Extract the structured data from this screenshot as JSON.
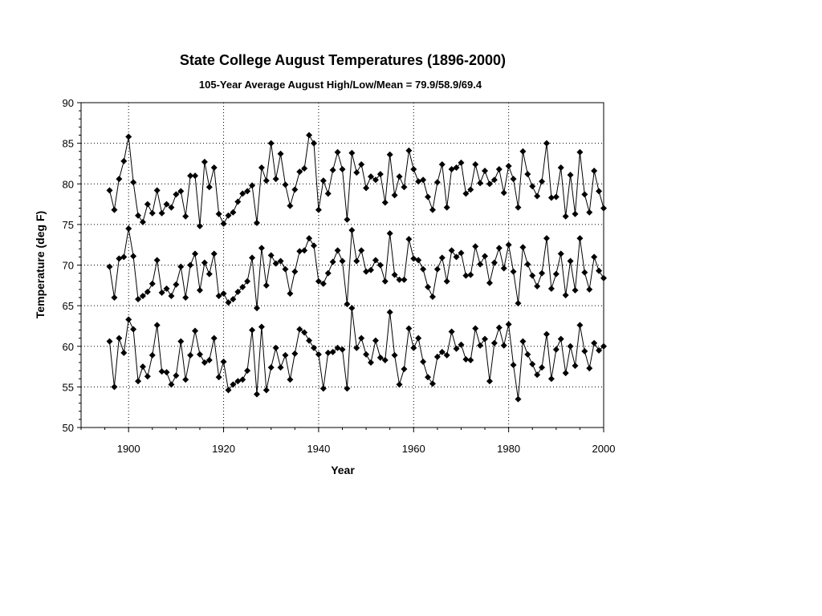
{
  "chart_data": {
    "type": "line",
    "title": "State College August Temperatures  (1896-2000)",
    "subtitle": "105-Year Average August High/Low/Mean = 79.9/58.9/69.4",
    "xlabel": "Year",
    "ylabel": "Temperature (deg F)",
    "xlim": [
      1890,
      2000
    ],
    "ylim": [
      50,
      90
    ],
    "x_ticks": [
      1900,
      1920,
      1940,
      1960,
      1980,
      2000
    ],
    "y_ticks": [
      50,
      55,
      60,
      65,
      70,
      75,
      80,
      85,
      90
    ],
    "grid": true,
    "legend": "none",
    "marker": "diamond",
    "colors": {
      "series": "#000000",
      "grid": "#000000",
      "background": "#ffffff"
    },
    "x": [
      1896,
      1897,
      1898,
      1899,
      1900,
      1901,
      1902,
      1903,
      1904,
      1905,
      1906,
      1907,
      1908,
      1909,
      1910,
      1911,
      1912,
      1913,
      1914,
      1915,
      1916,
      1917,
      1918,
      1919,
      1920,
      1921,
      1922,
      1923,
      1924,
      1925,
      1926,
      1927,
      1928,
      1929,
      1930,
      1931,
      1932,
      1933,
      1934,
      1935,
      1936,
      1937,
      1938,
      1939,
      1940,
      1941,
      1942,
      1943,
      1944,
      1945,
      1946,
      1947,
      1948,
      1949,
      1950,
      1951,
      1952,
      1953,
      1954,
      1955,
      1956,
      1957,
      1958,
      1959,
      1960,
      1961,
      1962,
      1963,
      1964,
      1965,
      1966,
      1967,
      1968,
      1969,
      1970,
      1971,
      1972,
      1973,
      1974,
      1975,
      1976,
      1977,
      1978,
      1979,
      1980,
      1981,
      1982,
      1983,
      1984,
      1985,
      1986,
      1987,
      1988,
      1989,
      1990,
      1991,
      1992,
      1993,
      1994,
      1995,
      1996,
      1997,
      1998,
      1999,
      2000
    ],
    "series": [
      {
        "values": [
          79.2,
          76.8,
          80.6,
          82.8,
          85.8,
          80.2,
          76.1,
          75.3,
          77.5,
          76.4,
          79.2,
          76.4,
          77.5,
          77.1,
          78.7,
          79.1,
          76.0,
          81.0,
          81.0,
          74.8,
          82.7,
          79.6,
          82.0,
          76.3,
          75.1,
          76.1,
          76.5,
          77.8,
          78.8,
          79.1,
          79.8,
          75.2,
          82.0,
          80.4,
          85.0,
          80.6,
          83.7,
          79.9,
          77.3,
          79.3,
          81.5,
          81.9,
          86.0,
          85.0,
          76.8,
          80.4,
          78.8,
          81.7,
          83.9,
          81.8,
          75.6,
          83.8,
          81.4,
          82.4,
          79.5,
          80.9,
          80.5,
          81.2,
          77.7,
          83.6,
          78.6,
          80.9,
          79.6,
          84.1,
          81.8,
          80.3,
          80.5,
          78.4,
          76.8,
          80.2,
          82.4,
          77.1,
          81.8,
          82.0,
          82.6,
          78.8,
          79.3,
          82.4,
          80.1,
          81.6,
          80.0,
          80.5,
          81.8,
          78.9,
          82.2,
          80.6,
          77.1,
          84.0,
          81.2,
          79.7,
          78.5,
          80.3,
          85.0,
          78.3,
          78.4,
          82.0,
          76.0,
          81.1,
          76.3,
          83.9,
          78.7,
          76.5,
          81.6,
          79.1,
          77.0
        ]
      },
      {
        "values": [
          69.8,
          66.0,
          70.8,
          71.0,
          74.5,
          71.1,
          65.8,
          66.2,
          66.7,
          67.7,
          70.6,
          66.6,
          67.1,
          66.2,
          67.6,
          69.8,
          66.0,
          70.0,
          71.4,
          66.9,
          70.3,
          68.9,
          71.4,
          66.2,
          66.5,
          65.4,
          65.8,
          66.7,
          67.3,
          68.0,
          70.9,
          64.7,
          72.1,
          67.5,
          71.2,
          70.2,
          70.5,
          69.5,
          66.5,
          69.2,
          71.7,
          71.8,
          73.3,
          72.4,
          68.0,
          67.7,
          69.0,
          70.4,
          71.8,
          70.5,
          65.2,
          74.3,
          70.5,
          71.8,
          69.2,
          69.4,
          70.6,
          70.0,
          68.0,
          73.9,
          68.8,
          68.2,
          68.2,
          73.2,
          70.8,
          70.6,
          69.5,
          67.3,
          66.1,
          69.5,
          70.9,
          68.0,
          71.8,
          71.0,
          71.5,
          68.7,
          68.8,
          72.3,
          70.1,
          71.1,
          67.8,
          70.3,
          72.1,
          69.6,
          72.5,
          69.2,
          65.3,
          72.2,
          70.1,
          68.7,
          67.4,
          69.0,
          73.3,
          67.1,
          68.9,
          71.4,
          66.3,
          70.5,
          66.9,
          73.3,
          69.1,
          67.0,
          71.0,
          69.3,
          68.4
        ]
      },
      {
        "values": [
          60.6,
          55.0,
          61.0,
          59.2,
          63.3,
          62.1,
          55.7,
          57.5,
          56.3,
          58.9,
          62.6,
          56.9,
          56.8,
          55.3,
          56.4,
          60.6,
          55.9,
          58.9,
          61.9,
          59.0,
          58.0,
          58.3,
          61.0,
          56.2,
          58.1,
          54.6,
          55.3,
          55.7,
          55.9,
          57.0,
          62.0,
          54.1,
          62.4,
          54.6,
          57.4,
          59.8,
          57.4,
          58.9,
          55.9,
          59.1,
          62.1,
          61.7,
          60.7,
          59.8,
          59.0,
          54.8,
          59.2,
          59.3,
          59.8,
          59.6,
          54.8,
          64.7,
          59.8,
          61.0,
          59.0,
          58.0,
          60.7,
          58.6,
          58.3,
          64.2,
          58.9,
          55.3,
          57.2,
          62.2,
          59.8,
          61.0,
          58.1,
          56.2,
          55.4,
          58.7,
          59.3,
          58.9,
          61.8,
          59.7,
          60.2,
          58.4,
          58.3,
          62.2,
          60.1,
          60.9,
          55.7,
          60.4,
          62.3,
          60.1,
          62.7,
          57.7,
          53.5,
          60.6,
          59.0,
          57.8,
          56.5,
          57.4,
          61.5,
          56.0,
          59.6,
          60.9,
          56.7,
          60.0,
          57.6,
          62.6,
          59.4,
          57.3,
          60.4,
          59.5,
          60.0
        ]
      }
    ]
  }
}
